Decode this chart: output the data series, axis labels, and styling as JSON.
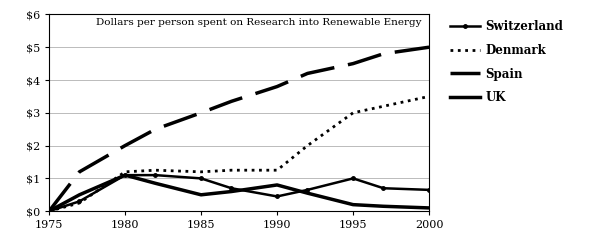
{
  "title": "Dollars per person spent on Research into Renewable Energy",
  "years": [
    1975,
    1977,
    1980,
    1982,
    1985,
    1987,
    1990,
    1992,
    1995,
    1997,
    2000
  ],
  "switzerland": [
    0,
    0.3,
    1.1,
    1.1,
    1.0,
    0.7,
    0.45,
    0.65,
    1.0,
    0.7,
    0.65
  ],
  "denmark": [
    0,
    0.25,
    1.2,
    1.25,
    1.2,
    1.25,
    1.25,
    2.0,
    3.0,
    3.2,
    3.5
  ],
  "spain": [
    0,
    1.2,
    2.0,
    2.5,
    3.0,
    3.35,
    3.8,
    4.2,
    4.5,
    4.8,
    5.0
  ],
  "uk": [
    0,
    0.5,
    1.1,
    0.85,
    0.5,
    0.6,
    0.8,
    0.55,
    0.2,
    0.15,
    0.1
  ],
  "ylim": [
    0,
    6
  ],
  "xlim": [
    1975,
    2000
  ],
  "yticks": [
    0,
    1,
    2,
    3,
    4,
    5,
    6
  ],
  "xticks": [
    1975,
    1980,
    1985,
    1990,
    1995,
    2000
  ],
  "background_color": "#ffffff",
  "grid_color": "#bbbbbb",
  "line_color": "#000000",
  "legend_labels": [
    "Switzerland",
    "Denmark",
    "Spain",
    "UK"
  ]
}
